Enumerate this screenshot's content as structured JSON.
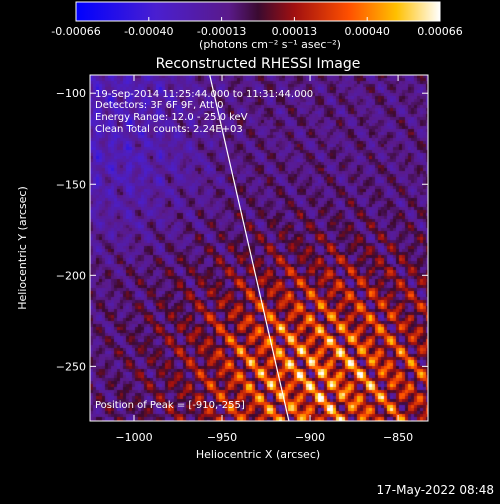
{
  "colorbar": {
    "tick_labels": [
      "-0.00066",
      "-0.00040",
      "-0.00013",
      "0.00013",
      "0.00040",
      "0.00066"
    ],
    "unit_label": "(photons cm⁻² s⁻¹ asec⁻²)"
  },
  "annotations": {
    "time_range": "19-Sep-2014 11:25:44.000 to 11:31:44.000",
    "detectors": "Detectors: 3F 6F 9F, Att 0",
    "energy": "Energy Range: 12.0 - 25.0 keV",
    "clean": "Clean    Total counts: 2.24E+03",
    "peak": "Position of Peak = [-910,-255]"
  },
  "footer": {
    "timestamp": "17-May-2022 08:48"
  },
  "colors": {
    "limb_line": "#ffffff",
    "background": "#000000"
  },
  "chart_data": {
    "type": "heatmap",
    "title": "Reconstructed RHESSI Image",
    "xlabel": "Heliocentric X (arcsec)",
    "ylabel": "Heliocentric Y (arcsec)",
    "xlim": [
      -1025,
      -833
    ],
    "ylim": [
      -280,
      -90
    ],
    "x_ticks": [
      -1000,
      -950,
      -900,
      -850
    ],
    "y_ticks": [
      -100,
      -150,
      -200,
      -250
    ],
    "color_range": [
      -0.00066,
      0.00066
    ],
    "colormap": "blue-purple-red-yellow-white",
    "peak_position": [
      -910,
      -255
    ],
    "limb_line": [
      [
        -957,
        -90
      ],
      [
        -912,
        -280
      ]
    ]
  }
}
